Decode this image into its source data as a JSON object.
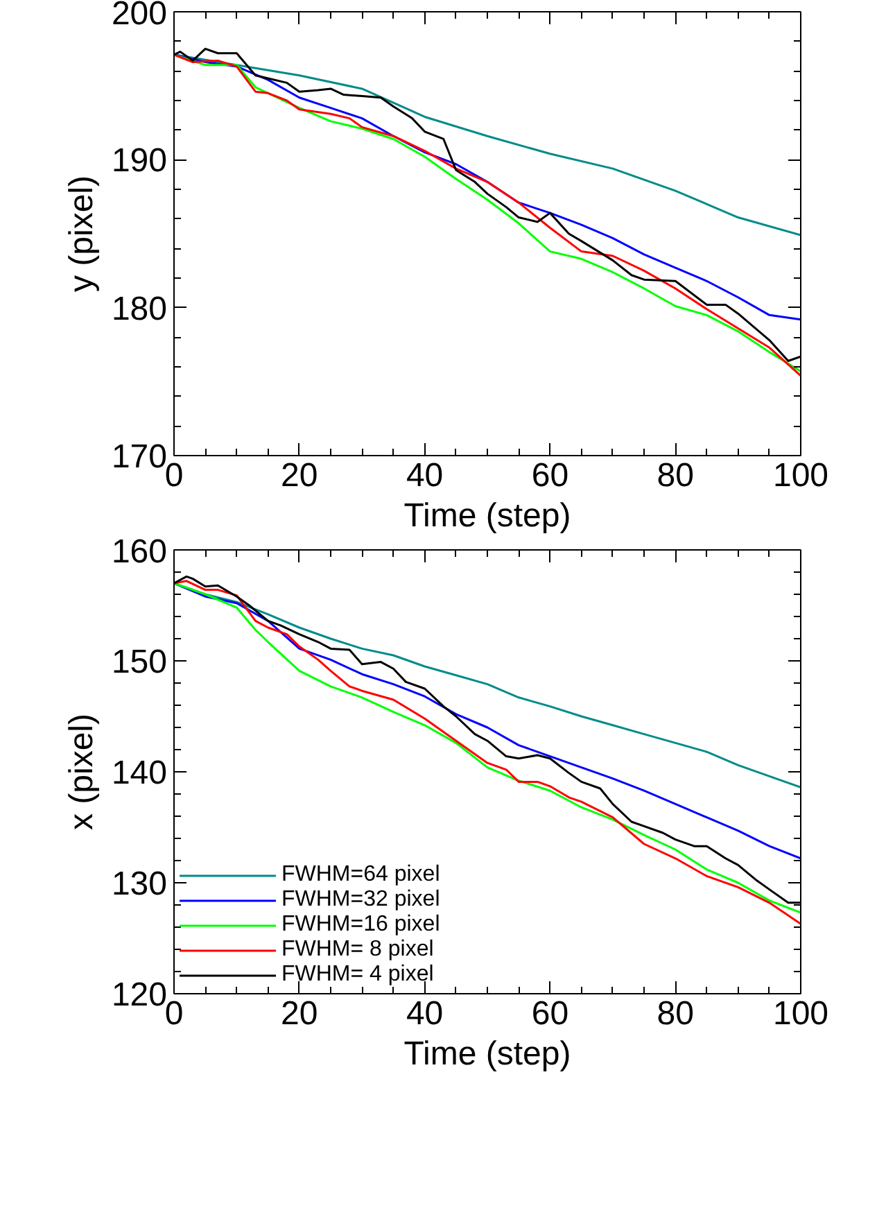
{
  "chart_data": [
    {
      "type": "line",
      "xlabel": "Time (step)",
      "ylabel": "y (pixel)",
      "xlim": [
        0,
        100
      ],
      "ylim": [
        170,
        200
      ],
      "xticks": [
        0,
        20,
        40,
        60,
        80,
        100
      ],
      "yticks": [
        170,
        180,
        190,
        200
      ],
      "grid": false,
      "legend": false,
      "series": [
        {
          "color": "#008b8b",
          "x": [
            0,
            10,
            20,
            30,
            40,
            50,
            60,
            70,
            80,
            90,
            100
          ],
          "values": [
            197.1,
            196.4,
            195.7,
            194.8,
            192.9,
            191.6,
            190.4,
            189.4,
            187.9,
            186.1,
            184.9
          ]
        },
        {
          "color": "#0000ff",
          "x": [
            0,
            5,
            10,
            15,
            20,
            25,
            30,
            35,
            40,
            45,
            50,
            55,
            60,
            65,
            70,
            75,
            80,
            85,
            90,
            95,
            100
          ],
          "values": [
            197.1,
            196.6,
            196.3,
            195.4,
            194.2,
            193.5,
            192.8,
            191.6,
            190.5,
            189.7,
            188.5,
            187.1,
            186.4,
            185.6,
            184.7,
            183.6,
            182.7,
            181.8,
            180.7,
            179.5,
            179.2
          ]
        },
        {
          "color": "#00ff00",
          "x": [
            0,
            5,
            10,
            13,
            15,
            20,
            25,
            30,
            35,
            40,
            45,
            50,
            55,
            60,
            65,
            70,
            75,
            80,
            85,
            90,
            95,
            100
          ],
          "values": [
            197.1,
            196.4,
            196.4,
            194.9,
            194.5,
            193.5,
            192.6,
            192.1,
            191.4,
            190.2,
            188.7,
            187.3,
            185.7,
            183.8,
            183.3,
            182.4,
            181.3,
            180.1,
            179.5,
            178.4,
            177.0,
            175.7
          ]
        },
        {
          "color": "#ff0000",
          "x": [
            0,
            3,
            7,
            10,
            13,
            15,
            18,
            20,
            25,
            28,
            30,
            35,
            40,
            45,
            50,
            55,
            60,
            65,
            70,
            75,
            80,
            85,
            90,
            95,
            100
          ],
          "values": [
            197.1,
            196.6,
            196.7,
            196.3,
            194.6,
            194.5,
            194.0,
            193.4,
            193.1,
            192.8,
            192.2,
            191.6,
            190.6,
            189.4,
            188.5,
            187.1,
            185.4,
            183.8,
            183.5,
            182.5,
            181.3,
            179.9,
            178.6,
            177.3,
            175.4
          ]
        },
        {
          "color": "#000000",
          "x": [
            0,
            1,
            3,
            5,
            7,
            10,
            13,
            15,
            18,
            20,
            23,
            25,
            27,
            30,
            33,
            35,
            38,
            40,
            43,
            45,
            48,
            50,
            53,
            55,
            58,
            60,
            63,
            65,
            70,
            73,
            75,
            80,
            85,
            88,
            90,
            95,
            98,
            100
          ],
          "values": [
            197.1,
            197.3,
            196.7,
            197.5,
            197.2,
            197.2,
            195.7,
            195.5,
            195.2,
            194.6,
            194.7,
            194.8,
            194.4,
            194.3,
            194.2,
            193.6,
            192.8,
            191.9,
            191.4,
            189.3,
            188.5,
            187.7,
            186.8,
            186.1,
            185.8,
            186.4,
            185.0,
            184.5,
            183.2,
            182.2,
            181.9,
            181.8,
            180.2,
            180.2,
            179.6,
            177.8,
            176.4,
            176.7
          ]
        }
      ]
    },
    {
      "type": "line",
      "xlabel": "Time (step)",
      "ylabel": "x (pixel)",
      "xlim": [
        0,
        100
      ],
      "ylim": [
        120,
        160
      ],
      "xticks": [
        0,
        20,
        40,
        60,
        80,
        100
      ],
      "yticks": [
        120,
        130,
        140,
        150,
        160
      ],
      "grid": false,
      "legend": "bottom left",
      "series": [
        {
          "name": "FWHM=64 pixel",
          "color": "#008b8b",
          "x": [
            0,
            5,
            10,
            15,
            20,
            25,
            30,
            35,
            40,
            45,
            50,
            55,
            60,
            65,
            70,
            75,
            80,
            85,
            90,
            95,
            100
          ],
          "values": [
            157.0,
            156.0,
            155.3,
            154.2,
            153.0,
            152.0,
            151.1,
            150.5,
            149.5,
            148.7,
            147.9,
            146.7,
            145.9,
            145.0,
            144.2,
            143.4,
            142.6,
            141.8,
            140.6,
            139.6,
            138.6
          ]
        },
        {
          "name": "FWHM=32 pixel",
          "color": "#0000ff",
          "x": [
            0,
            5,
            10,
            15,
            20,
            25,
            30,
            35,
            40,
            45,
            50,
            55,
            60,
            65,
            70,
            75,
            80,
            85,
            90,
            95,
            100
          ],
          "values": [
            157.0,
            155.8,
            155.2,
            153.6,
            151.1,
            150.1,
            148.8,
            147.9,
            146.8,
            145.2,
            144.0,
            142.4,
            141.4,
            140.4,
            139.4,
            138.3,
            137.1,
            135.9,
            134.7,
            133.3,
            132.2
          ]
        },
        {
          "name": "FWHM=16 pixel",
          "color": "#00ff00",
          "x": [
            0,
            5,
            10,
            13,
            15,
            20,
            25,
            30,
            35,
            40,
            45,
            50,
            55,
            60,
            65,
            70,
            75,
            80,
            85,
            90,
            95,
            100
          ],
          "values": [
            157.0,
            156.0,
            154.8,
            152.8,
            151.7,
            149.1,
            147.7,
            146.7,
            145.4,
            144.2,
            142.6,
            140.4,
            139.2,
            138.3,
            136.8,
            135.7,
            134.3,
            133.0,
            131.2,
            130.0,
            128.4,
            127.3
          ]
        },
        {
          "name": "FWHM= 8 pixel",
          "color": "#ff0000",
          "x": [
            0,
            2,
            5,
            7,
            10,
            13,
            15,
            18,
            20,
            23,
            25,
            28,
            30,
            35,
            40,
            45,
            50,
            53,
            55,
            58,
            60,
            63,
            65,
            70,
            75,
            80,
            85,
            90,
            95,
            100
          ],
          "values": [
            157.0,
            157.2,
            156.4,
            156.4,
            155.9,
            153.6,
            153.0,
            152.4,
            151.3,
            150.1,
            149.1,
            147.7,
            147.3,
            146.5,
            144.8,
            142.8,
            140.8,
            140.2,
            139.1,
            139.1,
            138.7,
            137.7,
            137.3,
            135.9,
            133.5,
            132.2,
            130.6,
            129.6,
            128.2,
            126.3
          ]
        },
        {
          "name": "FWHM= 4 pixel",
          "color": "#000000",
          "x": [
            0,
            2,
            3,
            5,
            7,
            10,
            12,
            15,
            17,
            20,
            23,
            25,
            28,
            30,
            33,
            35,
            37,
            40,
            43,
            45,
            48,
            50,
            53,
            55,
            58,
            60,
            63,
            65,
            68,
            70,
            73,
            75,
            78,
            80,
            83,
            85,
            88,
            90,
            93,
            95,
            98,
            100
          ],
          "values": [
            157.0,
            157.6,
            157.4,
            156.7,
            156.8,
            155.8,
            155.0,
            153.6,
            153.2,
            152.4,
            151.7,
            151.1,
            151.0,
            149.7,
            149.9,
            149.3,
            148.1,
            147.5,
            145.9,
            145.0,
            143.4,
            142.8,
            141.4,
            141.2,
            141.5,
            141.2,
            139.9,
            139.1,
            138.5,
            137.1,
            135.5,
            135.1,
            134.5,
            133.9,
            133.3,
            133.3,
            132.2,
            131.6,
            130.2,
            129.4,
            128.2,
            128.2
          ]
        }
      ]
    }
  ]
}
